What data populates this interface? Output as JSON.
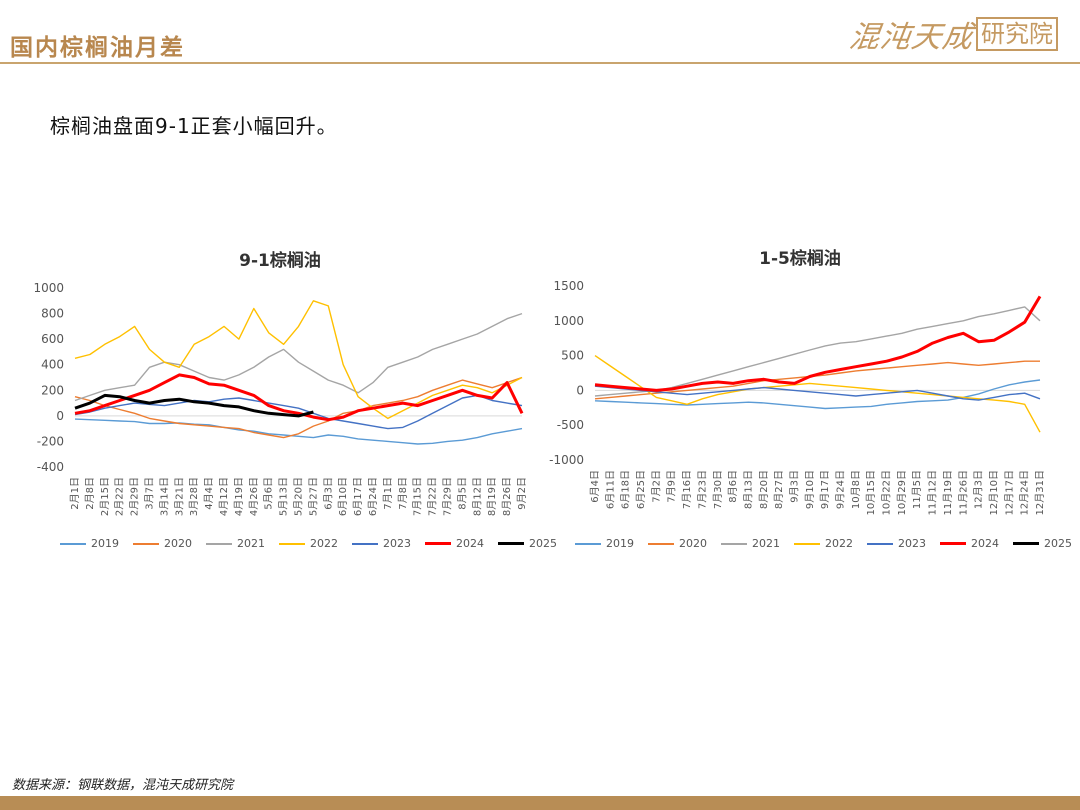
{
  "header": {
    "title": "国内棕榈油月差"
  },
  "logo": {
    "text": "混沌天成",
    "boxed": "研究院",
    "color": "#c59a62"
  },
  "subtitle": "棕榈油盘面9-1正套小幅回升。",
  "footer": {
    "source": "数据来源：钢联数据，混沌天成研究院"
  },
  "colors": {
    "2019": "#5b9bd5",
    "2020": "#ed7d31",
    "2021": "#a5a5a5",
    "2022": "#ffc000",
    "2023": "#4472c4",
    "2024": "#ff0000",
    "2025": "#000000"
  },
  "chart_data": [
    {
      "type": "line",
      "title": "9-1棕榈油",
      "yticks": [
        "1000",
        "800",
        "600",
        "400",
        "200",
        "0",
        "-200",
        "-400"
      ],
      "ylim": [
        -400,
        1000
      ],
      "xticks": [
        "2月1日",
        "2月8日",
        "2月15日",
        "2月22日",
        "2月29日",
        "3月7日",
        "3月14日",
        "3月21日",
        "3月28日",
        "4月4日",
        "4月12日",
        "4月19日",
        "4月26日",
        "5月6日",
        "5月13日",
        "5月20日",
        "5月27日",
        "6月3日",
        "6月10日",
        "6月17日",
        "6月24日",
        "7月1日",
        "7月8日",
        "7月15日",
        "7月22日",
        "7月29日",
        "8月5日",
        "8月12日",
        "8月19日",
        "8月26日",
        "9月2日"
      ],
      "legend": [
        "2019",
        "2020",
        "2021",
        "2022",
        "2023",
        "2024",
        "2025"
      ],
      "series": [
        {
          "name": "2019",
          "values": [
            -25,
            -30,
            -35,
            -40,
            -45,
            -60,
            -60,
            -55,
            -65,
            -70,
            -90,
            -110,
            -120,
            -140,
            -150,
            -160,
            -170,
            -150,
            -160,
            -180,
            -190,
            -200,
            -210,
            -220,
            -215,
            -200,
            -190,
            -170,
            -140,
            -120,
            -100
          ]
        },
        {
          "name": "2020",
          "values": [
            150,
            120,
            80,
            50,
            20,
            -20,
            -40,
            -60,
            -70,
            -80,
            -90,
            -100,
            -130,
            -150,
            -170,
            -140,
            -80,
            -40,
            20,
            40,
            80,
            100,
            120,
            150,
            200,
            240,
            280,
            250,
            220,
            260,
            300
          ]
        },
        {
          "name": "2021",
          "values": [
            120,
            160,
            200,
            220,
            240,
            380,
            420,
            400,
            350,
            300,
            280,
            320,
            380,
            460,
            520,
            420,
            350,
            280,
            240,
            180,
            260,
            380,
            420,
            460,
            520,
            560,
            600,
            640,
            700,
            760,
            800
          ]
        },
        {
          "name": "2022",
          "values": [
            450,
            480,
            560,
            620,
            700,
            520,
            420,
            380,
            560,
            620,
            700,
            600,
            840,
            650,
            560,
            700,
            900,
            860,
            400,
            150,
            60,
            -20,
            40,
            100,
            160,
            200,
            240,
            220,
            180,
            240,
            300
          ]
        },
        {
          "name": "2023",
          "values": [
            10,
            30,
            60,
            80,
            100,
            90,
            80,
            100,
            120,
            110,
            130,
            140,
            120,
            100,
            80,
            60,
            20,
            -20,
            -40,
            -60,
            -80,
            -100,
            -90,
            -40,
            20,
            80,
            140,
            160,
            120,
            100,
            80
          ]
        },
        {
          "name": "2024",
          "values": [
            20,
            40,
            80,
            120,
            160,
            200,
            260,
            320,
            300,
            250,
            240,
            200,
            160,
            80,
            40,
            20,
            -10,
            -30,
            -10,
            40,
            60,
            80,
            100,
            80,
            120,
            160,
            200,
            160,
            140,
            260,
            20
          ]
        },
        {
          "name": "2025",
          "values": [
            60,
            100,
            160,
            150,
            120,
            100,
            120,
            130,
            110,
            100,
            80,
            70,
            40,
            20,
            10,
            0,
            30,
            null,
            null,
            null,
            null,
            null,
            null,
            null,
            null,
            null,
            null,
            null,
            null,
            null,
            null
          ]
        }
      ]
    },
    {
      "type": "line",
      "title": "1-5棕榈油",
      "yticks": [
        "1500",
        "1000",
        "500",
        "0",
        "-500",
        "-1000"
      ],
      "ylim": [
        -1000,
        1500
      ],
      "xticks": [
        "6月4日",
        "6月11日",
        "6月18日",
        "6月25日",
        "7月2日",
        "7月9日",
        "7月16日",
        "7月23日",
        "7月30日",
        "8月6日",
        "8月13日",
        "8月20日",
        "8月27日",
        "9月3日",
        "9月10日",
        "9月17日",
        "9月24日",
        "10月8日",
        "10月15日",
        "10月22日",
        "10月29日",
        "11月5日",
        "11月12日",
        "11月19日",
        "11月26日",
        "12月3日",
        "12月10日",
        "12月17日",
        "12月24日",
        "12月31日"
      ],
      "legend": [
        "2019",
        "2020",
        "2021",
        "2022",
        "2023",
        "2024",
        "2025"
      ],
      "series": [
        {
          "name": "2019",
          "values": [
            -150,
            -160,
            -170,
            -180,
            -190,
            -200,
            -210,
            -200,
            -190,
            -180,
            -170,
            -180,
            -200,
            -220,
            -240,
            -260,
            -250,
            -240,
            -230,
            -200,
            -180,
            -160,
            -150,
            -140,
            -100,
            -50,
            20,
            80,
            120,
            150
          ]
        },
        {
          "name": "2020",
          "values": [
            -120,
            -100,
            -80,
            -60,
            -40,
            -20,
            0,
            20,
            40,
            60,
            100,
            140,
            160,
            180,
            200,
            220,
            250,
            280,
            300,
            320,
            340,
            360,
            380,
            400,
            380,
            360,
            380,
            400,
            420,
            420
          ]
        },
        {
          "name": "2021",
          "values": [
            -80,
            -60,
            -40,
            -20,
            0,
            40,
            100,
            160,
            220,
            280,
            340,
            400,
            460,
            520,
            580,
            640,
            680,
            700,
            740,
            780,
            820,
            880,
            920,
            960,
            1000,
            1060,
            1100,
            1150,
            1200,
            1000
          ]
        },
        {
          "name": "2022",
          "values": [
            500,
            350,
            200,
            50,
            -100,
            -150,
            -200,
            -120,
            -60,
            -20,
            20,
            40,
            60,
            80,
            100,
            80,
            60,
            40,
            20,
            0,
            -20,
            -40,
            -60,
            -80,
            -100,
            -120,
            -140,
            -160,
            -200,
            -600
          ]
        },
        {
          "name": "2023",
          "values": [
            60,
            40,
            20,
            0,
            -20,
            -40,
            -60,
            -40,
            -20,
            0,
            20,
            40,
            20,
            0,
            -20,
            -40,
            -60,
            -80,
            -60,
            -40,
            -20,
            0,
            -40,
            -80,
            -120,
            -140,
            -100,
            -60,
            -40,
            -120
          ]
        },
        {
          "name": "2024",
          "values": [
            80,
            60,
            40,
            20,
            0,
            20,
            60,
            100,
            120,
            100,
            140,
            160,
            120,
            100,
            200,
            260,
            300,
            340,
            380,
            420,
            480,
            560,
            680,
            760,
            820,
            700,
            720,
            840,
            980,
            1350
          ]
        },
        {
          "name": "2025",
          "values": []
        }
      ]
    }
  ]
}
